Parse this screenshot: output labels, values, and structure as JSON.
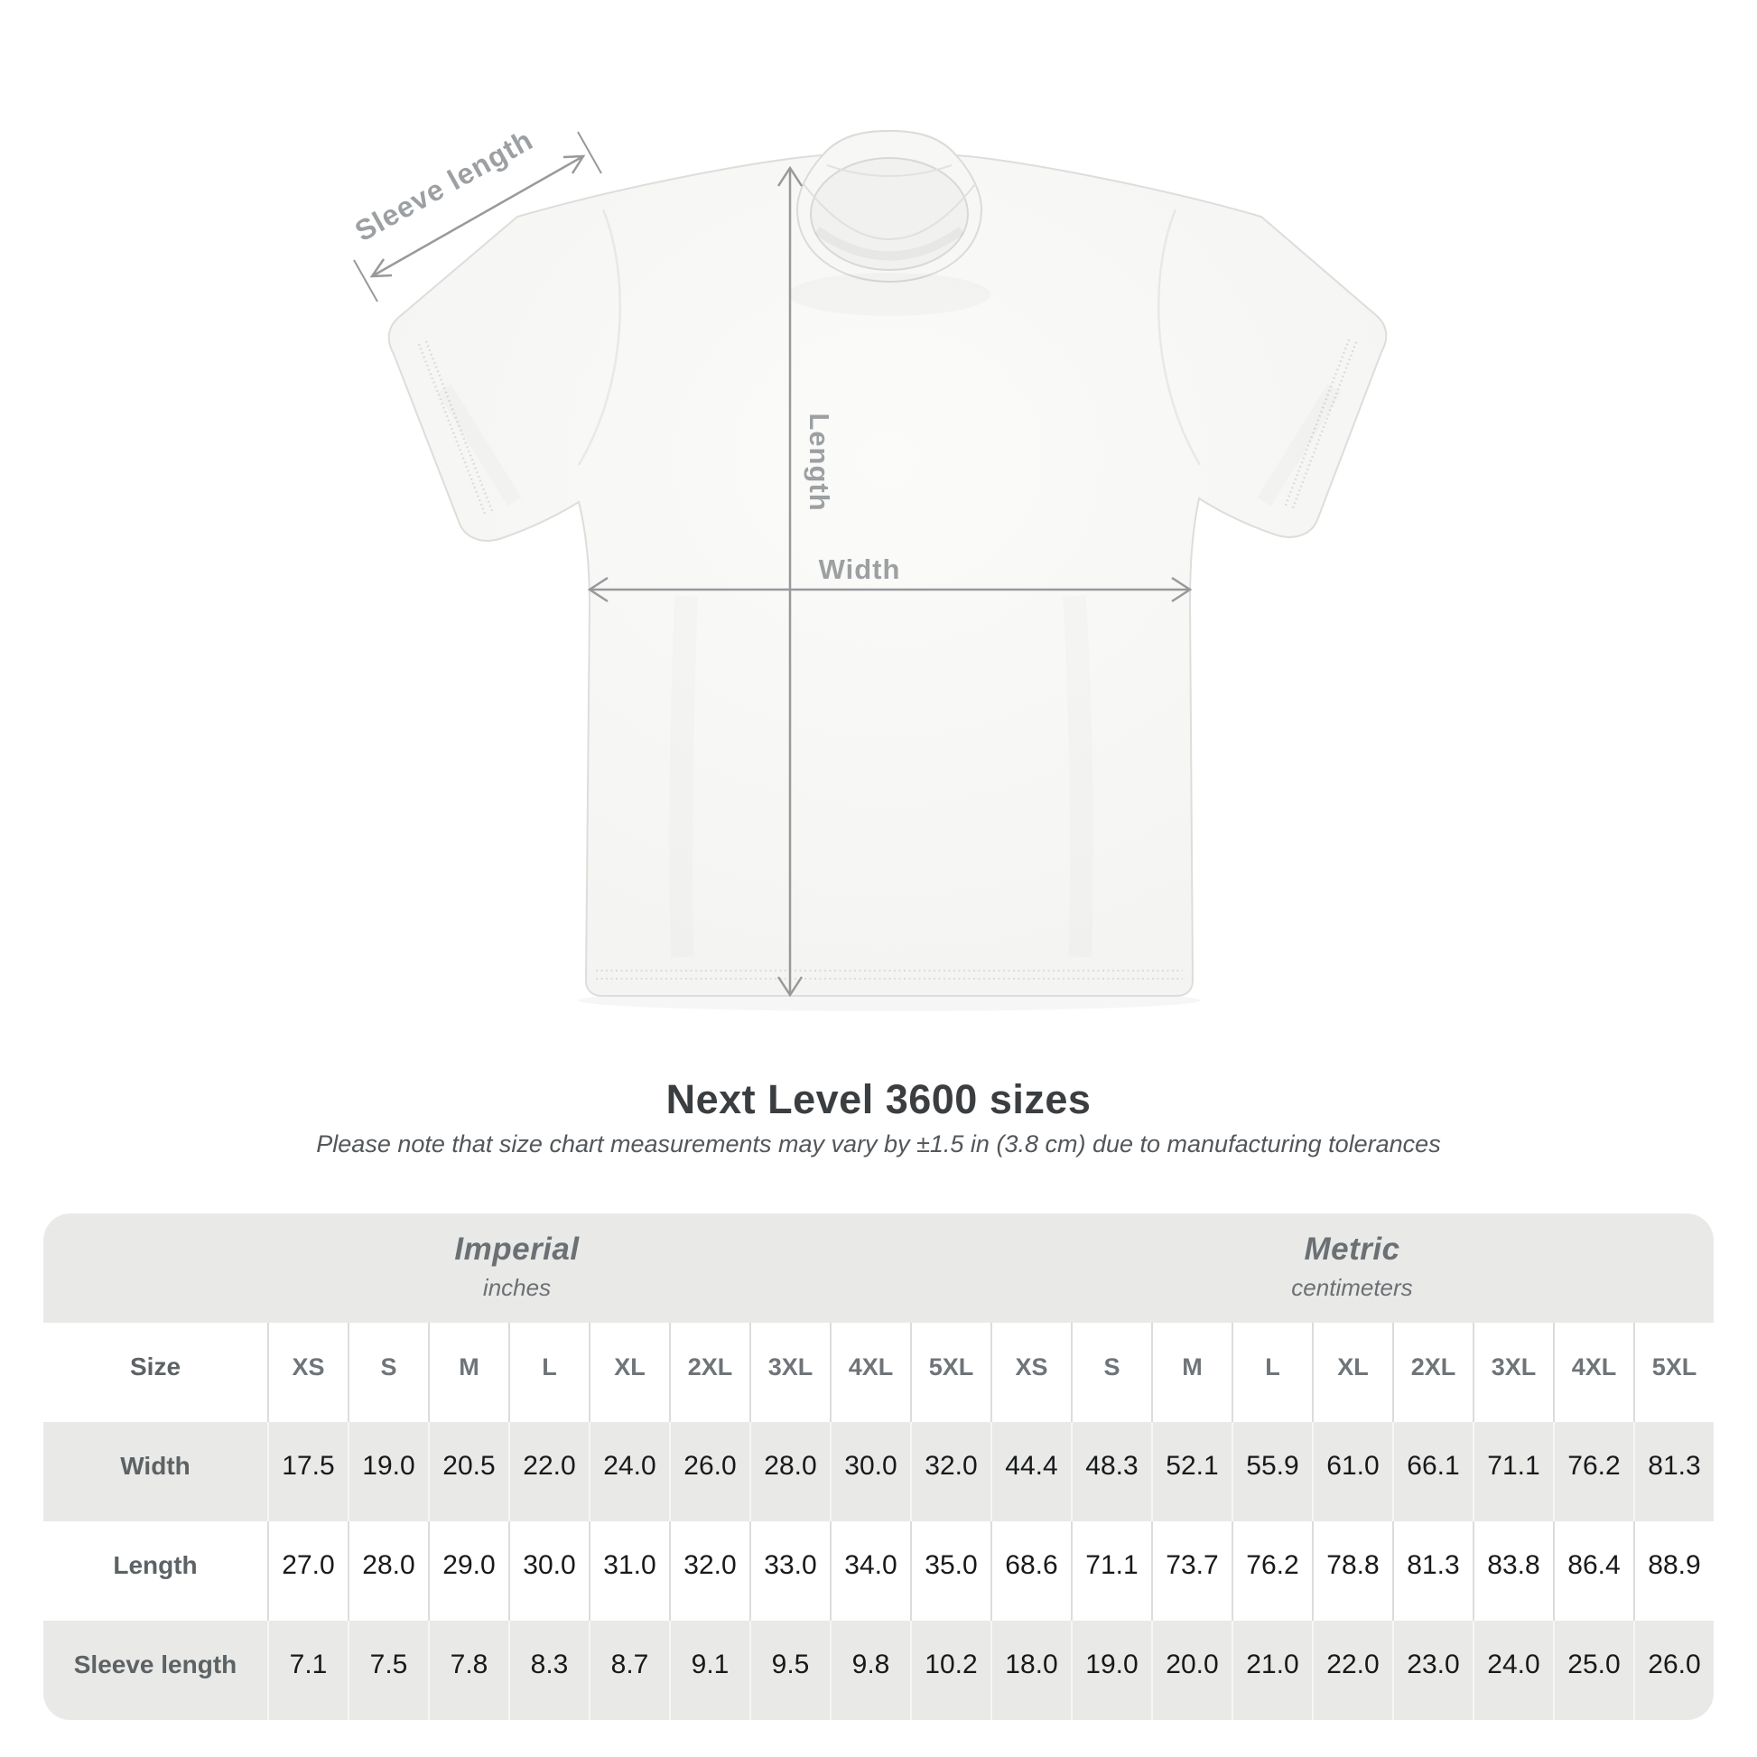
{
  "title": "Next Level 3600 sizes",
  "subtitle": "Please note that size chart measurements may vary by ±1.5 in (3.8 cm) due to manufacturing tolerances",
  "diagram": {
    "labels": {
      "sleeve": "Sleeve length",
      "length": "Length",
      "width": "Width"
    },
    "line_color": "#97999b",
    "label_color": "#9da0a2"
  },
  "table": {
    "unit_groups": [
      {
        "name": "Imperial",
        "unit": "inches"
      },
      {
        "name": "Metric",
        "unit": "centimeters"
      }
    ],
    "size_label": "Size",
    "imperial_sizes": [
      "XS",
      "S",
      "M",
      "L",
      "XL",
      "2XL",
      "3XL",
      "4XL",
      "5XL"
    ],
    "metric_sizes": [
      "XS",
      "S",
      "M",
      "L",
      "XL",
      "2XL",
      "3XL",
      "4XL",
      "5XL"
    ],
    "rows": [
      {
        "label": "Width",
        "imperial": [
          "17.5",
          "19.0",
          "20.5",
          "22.0",
          "24.0",
          "26.0",
          "28.0",
          "30.0",
          "32.0"
        ],
        "metric": [
          "44.4",
          "48.3",
          "52.1",
          "55.9",
          "61.0",
          "66.1",
          "71.1",
          "76.2",
          "81.3"
        ]
      },
      {
        "label": "Length",
        "imperial": [
          "27.0",
          "28.0",
          "29.0",
          "30.0",
          "31.0",
          "32.0",
          "33.0",
          "34.0",
          "35.0"
        ],
        "metric": [
          "68.6",
          "71.1",
          "73.7",
          "76.2",
          "78.8",
          "81.3",
          "83.8",
          "86.4",
          "88.9"
        ]
      },
      {
        "label": "Sleeve length",
        "imperial": [
          "7.1",
          "7.5",
          "7.8",
          "8.3",
          "8.7",
          "9.1",
          "9.5",
          "9.8",
          "10.2"
        ],
        "metric": [
          "18.0",
          "19.0",
          "20.0",
          "21.0",
          "22.0",
          "23.0",
          "24.0",
          "25.0",
          "26.0"
        ]
      }
    ]
  },
  "chart_data": {
    "type": "table",
    "title": "Next Level 3600 sizes",
    "note": "Please note that size chart measurements may vary by ±1.5 in (3.8 cm) due to manufacturing tolerances",
    "unit_groups": [
      "Imperial (inches)",
      "Metric (centimeters)"
    ],
    "columns": [
      "Size",
      "XS",
      "S",
      "M",
      "L",
      "XL",
      "2XL",
      "3XL",
      "4XL",
      "5XL",
      "XS",
      "S",
      "M",
      "L",
      "XL",
      "2XL",
      "3XL",
      "4XL",
      "5XL"
    ],
    "rows": [
      [
        "Width",
        "17.5",
        "19.0",
        "20.5",
        "22.0",
        "24.0",
        "26.0",
        "28.0",
        "30.0",
        "32.0",
        "44.4",
        "48.3",
        "52.1",
        "55.9",
        "61.0",
        "66.1",
        "71.1",
        "76.2",
        "81.3"
      ],
      [
        "Length",
        "27.0",
        "28.0",
        "29.0",
        "30.0",
        "31.0",
        "32.0",
        "33.0",
        "34.0",
        "35.0",
        "68.6",
        "71.1",
        "73.7",
        "76.2",
        "78.8",
        "81.3",
        "83.8",
        "86.4",
        "88.9"
      ],
      [
        "Sleeve length",
        "7.1",
        "7.5",
        "7.8",
        "8.3",
        "8.7",
        "9.1",
        "9.5",
        "9.8",
        "10.2",
        "18.0",
        "19.0",
        "20.0",
        "21.0",
        "22.0",
        "23.0",
        "24.0",
        "25.0",
        "26.0"
      ]
    ]
  }
}
